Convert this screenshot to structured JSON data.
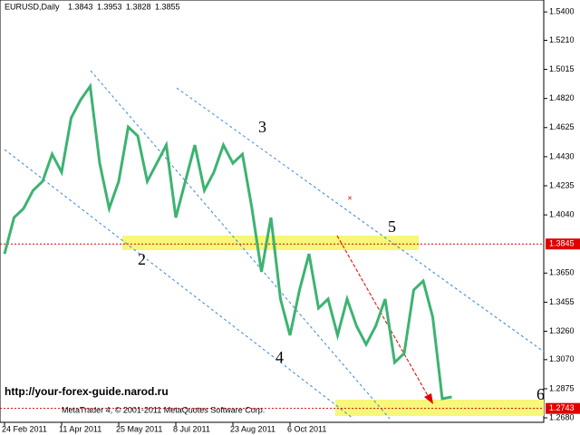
{
  "chart_data": {
    "type": "line",
    "title": "EURUSD,Daily",
    "ohlc": [
      1.3843,
      1.3953,
      1.3828,
      1.3855
    ],
    "categories": [
      "24 Feb 2011",
      null,
      null,
      null,
      null,
      null,
      "11 Apr 2011",
      null,
      null,
      null,
      null,
      null,
      "25 May 2011",
      null,
      null,
      null,
      null,
      null,
      "8 Jul 2011",
      null,
      null,
      null,
      null,
      null,
      "23 Aug 2011",
      null,
      null,
      null,
      null,
      null,
      "6 Oct 2011",
      null,
      null,
      null,
      null,
      null,
      null,
      null,
      null,
      null,
      null,
      null,
      null,
      null,
      null,
      null,
      null,
      null
    ],
    "values": [
      1.3779,
      1.4022,
      1.4083,
      1.4204,
      1.4265,
      1.4447,
      1.4326,
      1.469,
      1.4811,
      1.4902,
      1.4386,
      1.4083,
      1.4265,
      1.4629,
      1.4569,
      1.4265,
      1.4386,
      1.4508,
      1.4022,
      1.4265,
      1.4508,
      1.4204,
      1.4326,
      1.4508,
      1.4386,
      1.4447,
      1.4083,
      1.3658,
      1.4022,
      1.3476,
      1.3233,
      1.3537,
      1.3779,
      1.3415,
      1.3476,
      1.3233,
      1.3476,
      1.3294,
      1.3172,
      1.3294,
      1.3476,
      1.3051,
      1.3112,
      1.3537,
      1.3597,
      1.3355,
      1.2808,
      1.282
    ],
    "color": "#3cb371",
    "ylim": [
      1.265,
      1.548
    ],
    "yticks": [
      {
        "value": 1.54,
        "label": "1.5400"
      },
      {
        "value": 1.521,
        "label": "1.5210"
      },
      {
        "value": 1.5015,
        "label": "1.5015"
      },
      {
        "value": 1.482,
        "label": "1.4820"
      },
      {
        "value": 1.4625,
        "label": "1.4625"
      },
      {
        "value": 1.443,
        "label": "1.4430"
      },
      {
        "value": 1.4235,
        "label": "1.4235"
      },
      {
        "value": 1.404,
        "label": "1.4040"
      },
      {
        "value": 1.365,
        "label": "1.3650"
      },
      {
        "value": 1.3455,
        "label": "1.3455"
      },
      {
        "value": 1.326,
        "label": "1.3260"
      },
      {
        "value": 1.307,
        "label": "1.3070"
      },
      {
        "value": 1.2875,
        "label": "1.2875"
      },
      {
        "value": 1.268,
        "label": "1.2680"
      }
    ],
    "levels": [
      1.3845,
      1.2743
    ],
    "level_color": "#e00000",
    "annotations": [
      "2",
      "3",
      "4",
      "5",
      "6",
      "http://your-forex-guide.narod.ru",
      "MetaTrader 4, © 2001-2011 MetaQuotes Software Corp."
    ]
  }
}
